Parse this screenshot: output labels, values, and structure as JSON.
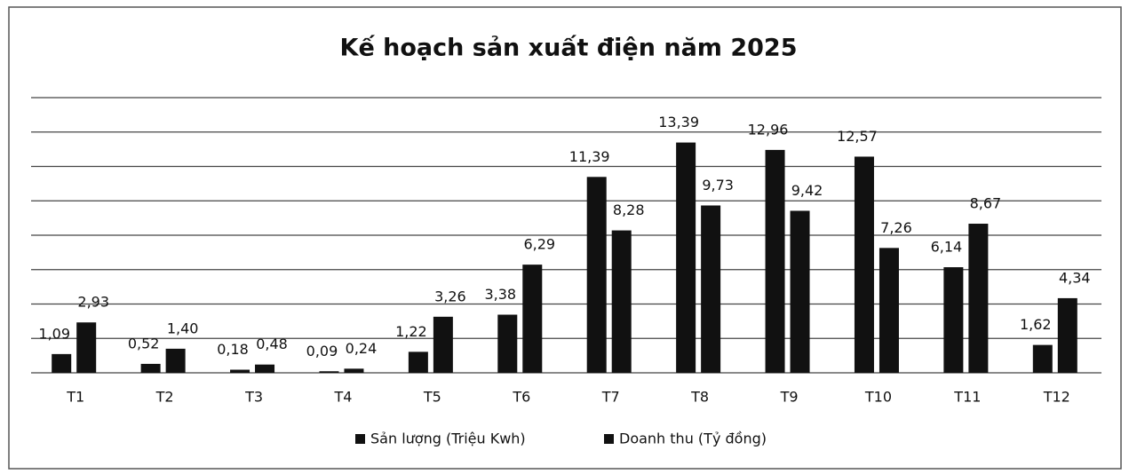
{
  "chart_data": {
    "type": "bar",
    "title": "Kế hoạch sản xuất điện năm 2025",
    "categories": [
      "T1",
      "T2",
      "T3",
      "T4",
      "T5",
      "T6",
      "T7",
      "T8",
      "T9",
      "T10",
      "T11",
      "T12"
    ],
    "series": [
      {
        "name": "Sản lượng (Triệu Kwh)",
        "color": "#111111",
        "values": [
          1.09,
          0.52,
          0.18,
          0.09,
          1.22,
          3.38,
          11.39,
          13.39,
          12.96,
          12.57,
          6.14,
          1.62
        ],
        "value_labels": [
          "1,09",
          "0,52",
          "0,18",
          "0,09",
          "1,22",
          "3,38",
          "11,39",
          "13,39",
          "12,96",
          "12,57",
          "6,14",
          "1,62"
        ]
      },
      {
        "name": "Doanh thu (Tỷ đồng)",
        "color": "#111111",
        "values": [
          2.93,
          1.4,
          0.48,
          0.24,
          3.26,
          6.29,
          8.28,
          9.73,
          9.42,
          7.26,
          8.67,
          4.34
        ],
        "value_labels": [
          "2,93",
          "1,40",
          "0,48",
          "0,24",
          "3,26",
          "6,29",
          "8,28",
          "9,73",
          "9,42",
          "7,26",
          "8,67",
          "4,34"
        ]
      }
    ],
    "ylim": [
      0,
      16
    ],
    "yticks": [
      0,
      2,
      4,
      6,
      8,
      10,
      12,
      14,
      16
    ],
    "grid": true,
    "legend": "bottom"
  }
}
